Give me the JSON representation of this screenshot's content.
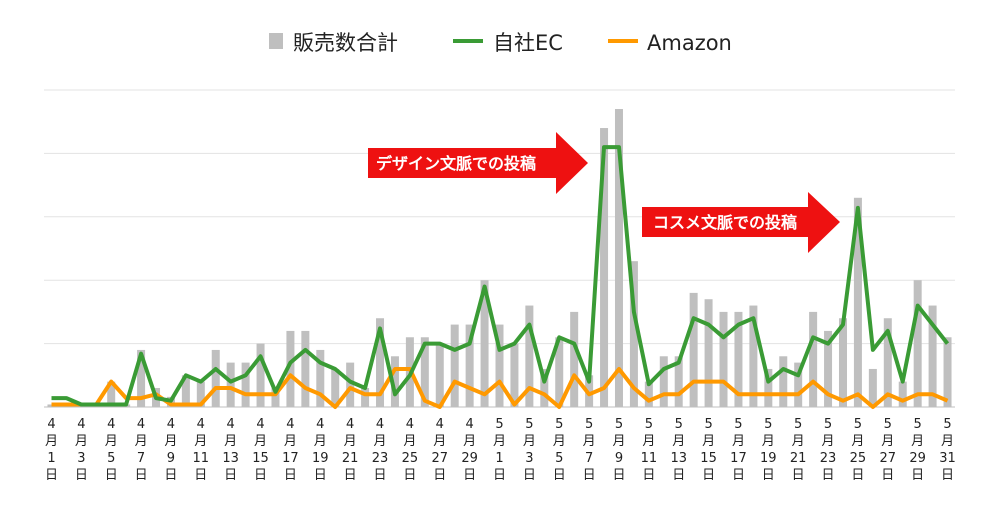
{
  "chart_data": {
    "type": "bar",
    "title": "",
    "xlabel": "",
    "ylabel": "",
    "grid": true,
    "legend_position": "top",
    "ylim": [
      0,
      250
    ],
    "categories": [
      "4月1日",
      "4月2日",
      "4月3日",
      "4月4日",
      "4月5日",
      "4月6日",
      "4月7日",
      "4月8日",
      "4月9日",
      "4月10日",
      "4月11日",
      "4月12日",
      "4月13日",
      "4月14日",
      "4月15日",
      "4月16日",
      "4月17日",
      "4月18日",
      "4月19日",
      "4月20日",
      "4月21日",
      "4月22日",
      "4月23日",
      "4月24日",
      "4月25日",
      "4月26日",
      "4月27日",
      "4月28日",
      "4月29日",
      "4月30日",
      "5月1日",
      "5月2日",
      "5月3日",
      "5月4日",
      "5月5日",
      "5月6日",
      "5月7日",
      "5月8日",
      "5月9日",
      "5月10日",
      "5月11日",
      "5月12日",
      "5月13日",
      "5月14日",
      "5月15日",
      "5月16日",
      "5月17日",
      "5月18日",
      "5月19日",
      "5月20日",
      "5月21日",
      "5月22日",
      "5月23日",
      "5月24日",
      "5月25日",
      "5月26日",
      "5月27日",
      "5月28日",
      "5月29日",
      "5月30日",
      "5月31日"
    ],
    "tick_labels": [
      [
        "4",
        "月",
        "1",
        "日"
      ],
      [
        "4",
        "月",
        "3",
        "日"
      ],
      [
        "4",
        "月",
        "5",
        "日"
      ],
      [
        "4",
        "月",
        "7",
        "日"
      ],
      [
        "4",
        "月",
        "9",
        "日"
      ],
      [
        "4",
        "月",
        "11",
        "日"
      ],
      [
        "4",
        "月",
        "13",
        "日"
      ],
      [
        "4",
        "月",
        "15",
        "日"
      ],
      [
        "4",
        "月",
        "17",
        "日"
      ],
      [
        "4",
        "月",
        "19",
        "日"
      ],
      [
        "4",
        "月",
        "21",
        "日"
      ],
      [
        "4",
        "月",
        "23",
        "日"
      ],
      [
        "4",
        "月",
        "25",
        "日"
      ],
      [
        "4",
        "月",
        "27",
        "日"
      ],
      [
        "4",
        "月",
        "29",
        "日"
      ],
      [
        "5",
        "月",
        "1",
        "日"
      ],
      [
        "5",
        "月",
        "3",
        "日"
      ],
      [
        "5",
        "月",
        "5",
        "日"
      ],
      [
        "5",
        "月",
        "7",
        "日"
      ],
      [
        "5",
        "月",
        "9",
        "日"
      ],
      [
        "5",
        "月",
        "11",
        "日"
      ],
      [
        "5",
        "月",
        "13",
        "日"
      ],
      [
        "5",
        "月",
        "15",
        "日"
      ],
      [
        "5",
        "月",
        "17",
        "日"
      ],
      [
        "5",
        "月",
        "19",
        "日"
      ],
      [
        "5",
        "月",
        "21",
        "日"
      ],
      [
        "5",
        "月",
        "23",
        "日"
      ],
      [
        "5",
        "月",
        "25",
        "日"
      ],
      [
        "5",
        "月",
        "27",
        "日"
      ],
      [
        "5",
        "月",
        "29",
        "日"
      ],
      [
        "5",
        "月",
        "31",
        "日"
      ]
    ],
    "series": [
      {
        "name": "販売数合計",
        "type": "bar",
        "color": "#bfbfbf",
        "values": [
          2,
          2,
          0,
          0,
          20,
          2,
          45,
          15,
          8,
          25,
          20,
          45,
          35,
          35,
          50,
          15,
          60,
          60,
          45,
          30,
          35,
          15,
          70,
          40,
          55,
          55,
          50,
          65,
          65,
          100,
          65,
          50,
          80,
          30,
          55,
          75,
          25,
          220,
          235,
          115,
          20,
          40,
          40,
          90,
          85,
          75,
          75,
          80,
          30,
          40,
          35,
          75,
          60,
          70,
          165,
          30,
          70,
          20,
          100,
          80,
          55
        ]
      },
      {
        "name": "自社EC",
        "type": "line",
        "color": "#3a9b35",
        "values": [
          7,
          7,
          2,
          2,
          2,
          2,
          42,
          7,
          5,
          25,
          20,
          30,
          20,
          25,
          40,
          12,
          35,
          45,
          35,
          30,
          20,
          15,
          62,
          10,
          25,
          50,
          50,
          45,
          50,
          95,
          45,
          50,
          65,
          20,
          55,
          50,
          20,
          205,
          205,
          75,
          18,
          30,
          35,
          70,
          65,
          55,
          65,
          70,
          20,
          30,
          25,
          55,
          50,
          65,
          157,
          45,
          60,
          20,
          80,
          65,
          50
        ]
      },
      {
        "name": "Amazon",
        "type": "line",
        "color": "#ff9900",
        "values": [
          2,
          2,
          2,
          2,
          20,
          7,
          7,
          10,
          2,
          2,
          2,
          15,
          15,
          10,
          10,
          10,
          25,
          15,
          10,
          0,
          15,
          10,
          10,
          30,
          30,
          5,
          0,
          20,
          15,
          10,
          20,
          2,
          15,
          10,
          0,
          25,
          10,
          15,
          30,
          15,
          5,
          10,
          10,
          20,
          20,
          20,
          10,
          10,
          10,
          10,
          10,
          20,
          10,
          5,
          10,
          0,
          10,
          5,
          10,
          10,
          5
        ]
      }
    ],
    "annotations": [
      {
        "text": "デザイン文脈での投稿",
        "kind": "arrow",
        "points_to": "5月9日"
      },
      {
        "text": "コスメ文脈での投稿",
        "kind": "arrow",
        "points_to": "5月25日"
      }
    ]
  },
  "legend": {
    "bar_label": "販売数合計",
    "ec_label": "自社EC",
    "amazon_label": "Amazon"
  },
  "annotations": {
    "design": "デザイン文脈での投稿",
    "cosme": "コスメ文脈での投稿"
  }
}
